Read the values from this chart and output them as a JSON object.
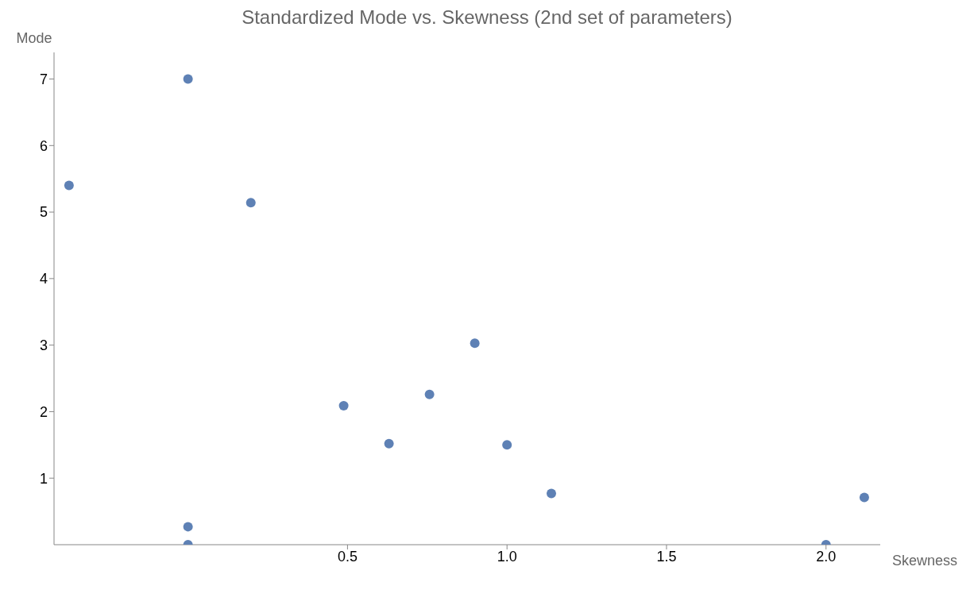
{
  "chart_data": {
    "type": "scatter",
    "title": "Standardized Mode vs. Skewness (2nd set of parameters)",
    "xlabel": "Skewness",
    "ylabel": "Mode",
    "x": [
      -0.373,
      0,
      0.197,
      0.488,
      0.63,
      0.757,
      0.899,
      1.0,
      1.139,
      2.12,
      0,
      0,
      2.0
    ],
    "series": [
      {
        "color": "#5e81b5",
        "values": [
          5.4,
          7.0,
          5.14,
          2.09,
          1.52,
          2.26,
          3.03,
          1.5,
          0.77,
          0.71,
          0.27,
          0,
          0
        ]
      }
    ],
    "xlim": [
      -0.42,
      2.17
    ],
    "ylim": [
      0,
      7.4
    ],
    "xticks": [
      {
        "value": 0.5,
        "label": "0.5"
      },
      {
        "value": 1,
        "label": "1.0"
      },
      {
        "value": 1.5,
        "label": "1.5"
      },
      {
        "value": 2,
        "label": "2.0"
      }
    ],
    "yticks": [
      1,
      2,
      3,
      4,
      5,
      6,
      7
    ],
    "marker": "circle",
    "grid": false,
    "legend": false
  }
}
